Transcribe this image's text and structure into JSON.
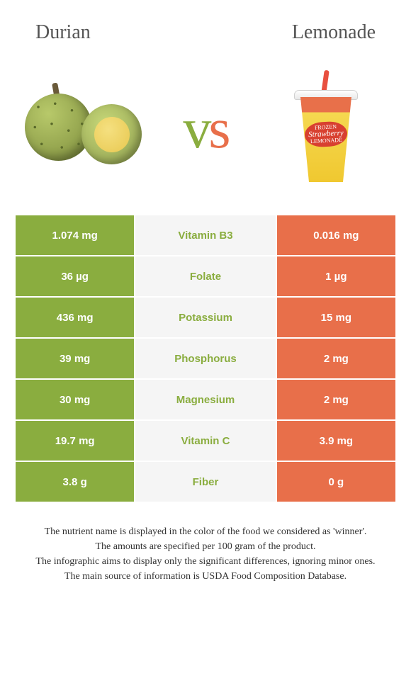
{
  "header": {
    "left_title": "Durian",
    "right_title": "Lemonade"
  },
  "vs": {
    "v": "v",
    "s": "s"
  },
  "colors": {
    "left": "#8aad3f",
    "right": "#e86f4a",
    "mid_bg": "#f5f5f5",
    "text": "#555555"
  },
  "cup_label": {
    "line1": "FROZEN",
    "line2": "Strawberry",
    "line3": "LEMONADE"
  },
  "rows": [
    {
      "left": "1.074 mg",
      "label": "Vitamin B3",
      "right": "0.016 mg",
      "winner": "left"
    },
    {
      "left": "36 µg",
      "label": "Folate",
      "right": "1 µg",
      "winner": "left"
    },
    {
      "left": "436 mg",
      "label": "Potassium",
      "right": "15 mg",
      "winner": "left"
    },
    {
      "left": "39 mg",
      "label": "Phosphorus",
      "right": "2 mg",
      "winner": "left"
    },
    {
      "left": "30 mg",
      "label": "Magnesium",
      "right": "2 mg",
      "winner": "left"
    },
    {
      "left": "19.7 mg",
      "label": "Vitamin C",
      "right": "3.9 mg",
      "winner": "left"
    },
    {
      "left": "3.8 g",
      "label": "Fiber",
      "right": "0 g",
      "winner": "left"
    }
  ],
  "footer": {
    "line1": "The nutrient name is displayed in the color of the food we considered as 'winner'.",
    "line2": "The amounts are specified per 100 gram of the product.",
    "line3": "The infographic aims to display only the significant differences, ignoring minor ones.",
    "line4": "The main source of information is USDA Food Composition Database."
  }
}
